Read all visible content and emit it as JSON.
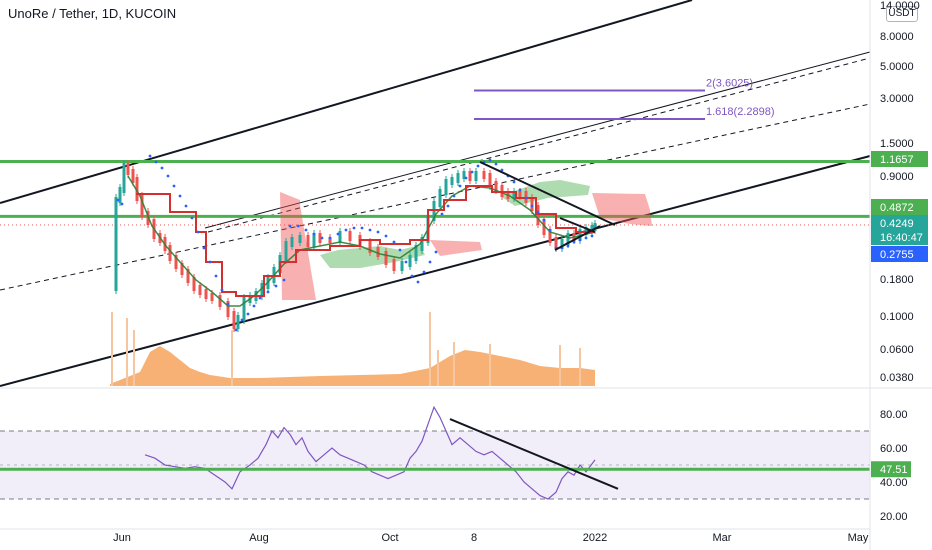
{
  "header": {
    "title": "UnoRe / Tether, 1D, KUCOIN",
    "currency_label": "USDT"
  },
  "chart_data": [
    {
      "type": "line",
      "panel": "price",
      "scale": "log",
      "y_ticks": [
        "14.0000",
        "8.0000",
        "5.0000",
        "3.0000",
        "1.5000",
        "0.9000",
        "0.1800",
        "0.1000",
        "0.0600",
        "0.0380"
      ],
      "price_tags": [
        {
          "label": "1.1657",
          "color": "#4caf50"
        },
        {
          "label": "0.4872",
          "color": "#4caf50"
        },
        {
          "label": "0.4249",
          "color": "#26a69a"
        },
        {
          "label": "16:40:47",
          "color": "#26a69a"
        },
        {
          "label": "0.2755",
          "color": "#2962ff"
        }
      ],
      "horizontal_levels": [
        1.1657,
        0.4872
      ],
      "current_price": 0.4249,
      "fib_levels": [
        {
          "label": "2(3.6025)",
          "value": 3.6025
        },
        {
          "label": "1.618(2.2898)",
          "value": 2.2898
        }
      ],
      "x_ticks": [
        "Jun",
        "Aug",
        "Oct",
        "8",
        "2022",
        "Mar",
        "May"
      ],
      "colors": {
        "candle_up": "#26a69a",
        "candle_down": "#ef5350",
        "level": "#4caf50",
        "fib": "#7e57c2",
        "kijun": "#d32f2f",
        "psar": "#2962ff",
        "volume": "#f7a35c"
      }
    },
    {
      "type": "line",
      "panel": "rsi",
      "ylim": [
        20,
        80
      ],
      "y_ticks": [
        "80.00",
        "60.00",
        "40.00",
        "20.00"
      ],
      "bands": [
        30,
        70
      ],
      "current": {
        "label": "47.51",
        "value": 47.51
      },
      "colors": {
        "line": "#7e57c2",
        "band_fill": "#ede7f6",
        "level": "#4caf50"
      }
    }
  ]
}
